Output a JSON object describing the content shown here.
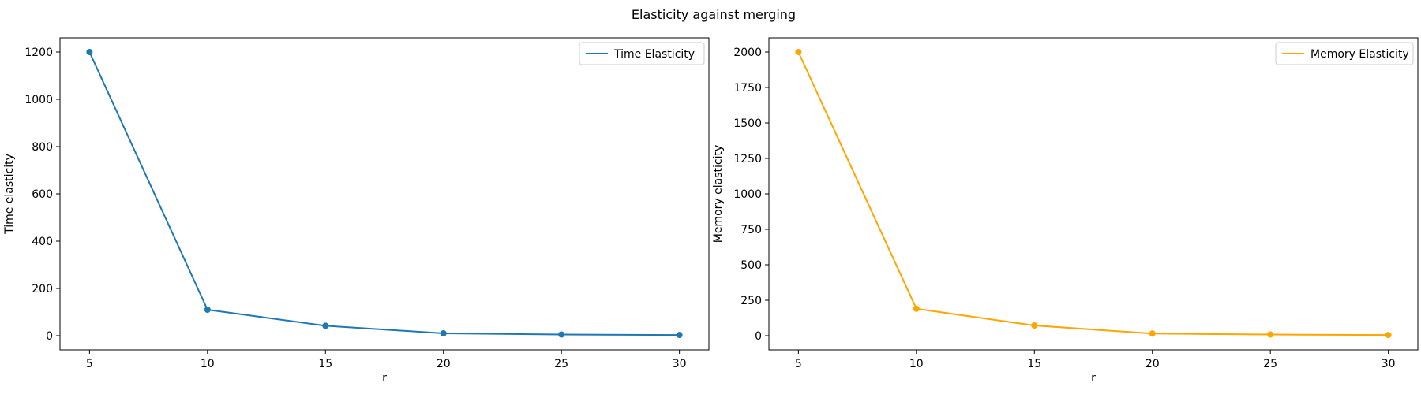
{
  "figure": {
    "title": "Elasticity against merging"
  },
  "chart_data": [
    {
      "type": "line",
      "title": "",
      "xlabel": "r",
      "ylabel": "Time elasticity",
      "x": [
        5,
        10,
        15,
        20,
        25,
        30
      ],
      "series": [
        {
          "name": "Time Elasticity",
          "values": [
            1200,
            110,
            42,
            10,
            5,
            3
          ],
          "color": "#1f77b4",
          "marker": "circle"
        }
      ],
      "xlim": [
        3.75,
        31.25
      ],
      "ylim": [
        -60,
        1260
      ],
      "xticks": [
        5,
        10,
        15,
        20,
        25,
        30
      ],
      "yticks": [
        0,
        200,
        400,
        600,
        800,
        1000,
        1200
      ],
      "legend_position": "top-right",
      "grid": false
    },
    {
      "type": "line",
      "title": "",
      "xlabel": "r",
      "ylabel": "Memory elasticity",
      "x": [
        5,
        10,
        15,
        20,
        25,
        30
      ],
      "series": [
        {
          "name": "Memory Elasticity",
          "values": [
            2000,
            190,
            72,
            15,
            8,
            5
          ],
          "color": "#ffa500",
          "marker": "circle"
        }
      ],
      "xlim": [
        3.75,
        31.25
      ],
      "ylim": [
        -100,
        2100
      ],
      "xticks": [
        5,
        10,
        15,
        20,
        25,
        30
      ],
      "yticks": [
        0,
        250,
        500,
        750,
        1000,
        1250,
        1500,
        1750,
        2000
      ],
      "legend_position": "top-right",
      "grid": false
    }
  ]
}
